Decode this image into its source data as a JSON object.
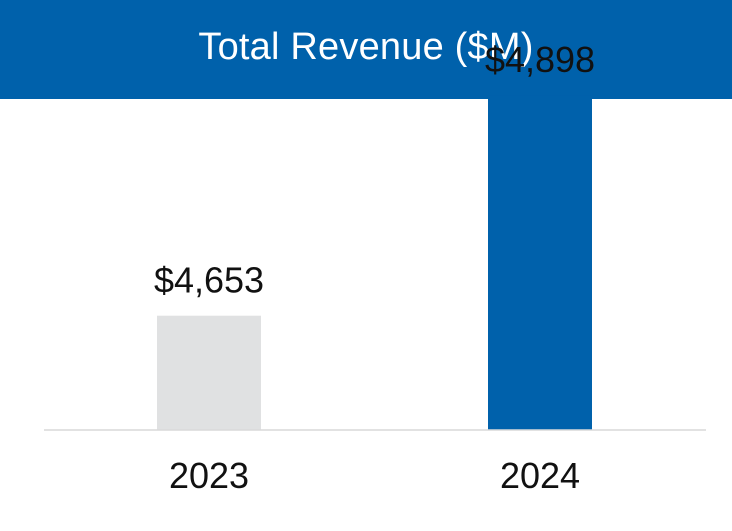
{
  "chart_data": {
    "type": "bar",
    "title": "Total Revenue ($M)",
    "categories": [
      "2023",
      "2024"
    ],
    "values": [
      4653,
      4898
    ],
    "value_labels": [
      "$4,653",
      "$4,898"
    ],
    "colors": [
      "#e0e1e2",
      "#0061ab"
    ],
    "xlabel": "",
    "ylabel": "",
    "grid": false,
    "legend": "none"
  },
  "colors": {
    "banner": "#0061ab",
    "banner_text": "#ffffff",
    "baseline": "#d9d9d9",
    "text": "#111111"
  }
}
